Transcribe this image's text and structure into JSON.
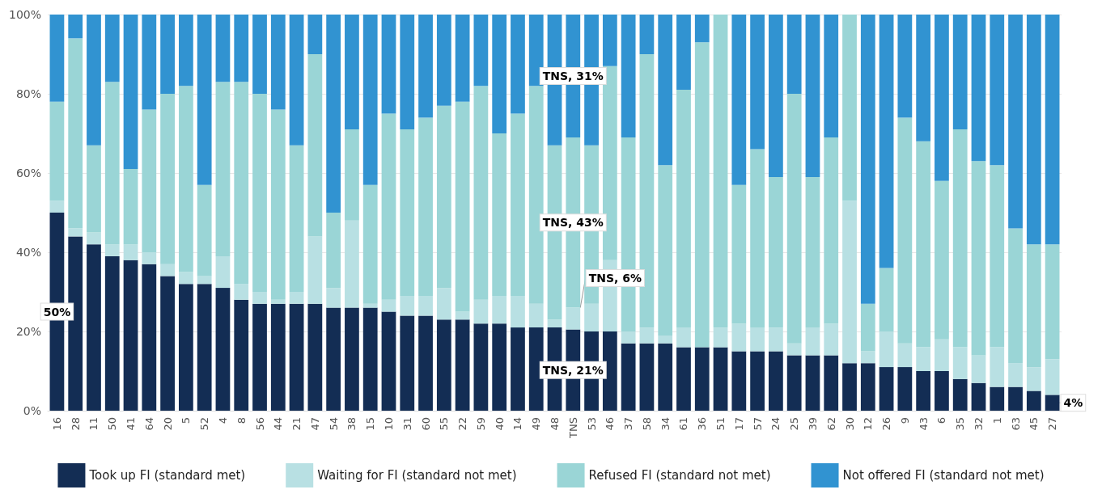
{
  "chart_data": {
    "type": "bar",
    "stacked": true,
    "categories": [
      "16",
      "28",
      "11",
      "50",
      "41",
      "64",
      "20",
      "5",
      "52",
      "4",
      "8",
      "56",
      "44",
      "21",
      "47",
      "54",
      "38",
      "15",
      "10",
      "31",
      "60",
      "55",
      "22",
      "59",
      "40",
      "14",
      "49",
      "48",
      "TNS",
      "53",
      "46",
      "37",
      "58",
      "34",
      "61",
      "36",
      "51",
      "17",
      "57",
      "24",
      "25",
      "39",
      "62",
      "30",
      "12",
      "26",
      "9",
      "43",
      "6",
      "35",
      "32",
      "1",
      "63",
      "45",
      "27"
    ],
    "series": [
      {
        "name": "Took up FI (standard met)",
        "color": "#132d54",
        "values": [
          50,
          44,
          42,
          39,
          38,
          37,
          34,
          32,
          32,
          31,
          28,
          27,
          27,
          27,
          27,
          26,
          26,
          26,
          25,
          24,
          24,
          23,
          23,
          22,
          22,
          21,
          21,
          21,
          20.5,
          20,
          20,
          17,
          17,
          17,
          16,
          16,
          16,
          15,
          15,
          15,
          14,
          14,
          14,
          12,
          12,
          11,
          11,
          10,
          10,
          8,
          7,
          6,
          6,
          5,
          4
        ],
        "value_labels": [
          "50%",
          null,
          null,
          null,
          null,
          null,
          null,
          null,
          null,
          null,
          null,
          null,
          null,
          null,
          null,
          null,
          null,
          null,
          null,
          null,
          null,
          null,
          null,
          null,
          null,
          null,
          null,
          null,
          "TNS, 21%",
          null,
          null,
          null,
          null,
          null,
          null,
          null,
          null,
          null,
          null,
          null,
          null,
          null,
          null,
          null,
          null,
          null,
          null,
          null,
          null,
          null,
          null,
          null,
          null,
          null,
          "4%"
        ]
      },
      {
        "name": "Waiting for FI (standard not met)",
        "color": "#b8e0e3",
        "values": [
          3,
          2,
          3,
          3,
          4,
          3,
          3,
          3,
          2,
          8,
          4,
          3,
          1,
          3,
          17,
          5,
          22,
          1,
          3,
          5,
          5,
          8,
          2,
          6,
          7,
          8,
          6,
          2,
          5.5,
          7,
          18,
          3,
          4,
          2,
          5,
          0,
          5,
          7,
          6,
          6,
          3,
          7,
          8,
          41,
          3,
          9,
          6,
          6,
          8,
          8,
          7,
          10,
          6,
          6,
          9
        ],
        "value_labels": [
          null,
          null,
          null,
          null,
          null,
          null,
          null,
          null,
          null,
          null,
          null,
          null,
          null,
          null,
          null,
          null,
          null,
          null,
          null,
          null,
          null,
          null,
          null,
          null,
          null,
          null,
          null,
          null,
          "TNS, 6%",
          null,
          null,
          null,
          null,
          null,
          null,
          null,
          null,
          null,
          null,
          null,
          null,
          null,
          null,
          null,
          null,
          null,
          null,
          null,
          null,
          null,
          null,
          null,
          null,
          null,
          null
        ]
      },
      {
        "name": "Refused FI (standard not met)",
        "color": "#9ad5d6",
        "values": [
          25,
          48,
          22,
          41,
          19,
          36,
          43,
          47,
          23,
          44,
          51,
          50,
          48,
          37,
          46,
          19,
          23,
          30,
          47,
          42,
          45,
          46,
          53,
          54,
          41,
          46,
          55,
          44,
          43,
          40,
          49,
          49,
          69,
          43,
          60,
          77,
          79,
          35,
          45,
          38,
          63,
          38,
          47,
          47,
          12,
          16,
          57,
          52,
          40,
          55,
          49,
          46,
          34,
          31,
          29
        ],
        "value_labels": [
          null,
          null,
          null,
          null,
          null,
          null,
          null,
          null,
          null,
          null,
          null,
          null,
          null,
          null,
          null,
          null,
          null,
          null,
          null,
          null,
          null,
          null,
          null,
          null,
          null,
          null,
          null,
          null,
          "TNS, 43%",
          null,
          null,
          null,
          null,
          null,
          null,
          null,
          null,
          null,
          null,
          null,
          null,
          null,
          null,
          null,
          null,
          null,
          null,
          null,
          null,
          null,
          null,
          null,
          null,
          null,
          null
        ]
      },
      {
        "name": "Not offered FI (standard not met)",
        "color": "#3193d1",
        "values": [
          22,
          6,
          33,
          17,
          39,
          24,
          20,
          18,
          43,
          17,
          17,
          20,
          24,
          33,
          10,
          50,
          29,
          43,
          25,
          29,
          26,
          23,
          22,
          18,
          30,
          25,
          18,
          33,
          31,
          33,
          13,
          31,
          10,
          38,
          19,
          7,
          0,
          43,
          34,
          41,
          20,
          41,
          31,
          0,
          73,
          64,
          26,
          32,
          42,
          29,
          37,
          38,
          54,
          58,
          58
        ],
        "value_labels": [
          null,
          null,
          null,
          null,
          null,
          null,
          null,
          null,
          null,
          null,
          null,
          null,
          null,
          null,
          null,
          null,
          null,
          null,
          null,
          null,
          null,
          null,
          null,
          null,
          null,
          null,
          null,
          null,
          "TNS, 31%",
          null,
          null,
          null,
          null,
          null,
          null,
          null,
          null,
          null,
          null,
          null,
          null,
          null,
          null,
          null,
          null,
          null,
          null,
          null,
          null,
          null,
          null,
          null,
          null,
          null,
          null
        ]
      }
    ],
    "ylim": [
      0,
      100
    ],
    "yticks": [
      {
        "value": 0,
        "label": "0%"
      },
      {
        "value": 20,
        "label": "20%"
      },
      {
        "value": 40,
        "label": "40%"
      },
      {
        "value": 60,
        "label": "60%"
      },
      {
        "value": 80,
        "label": "80%"
      },
      {
        "value": 100,
        "label": "100%"
      }
    ],
    "grid": "y",
    "legend": "bottom"
  }
}
